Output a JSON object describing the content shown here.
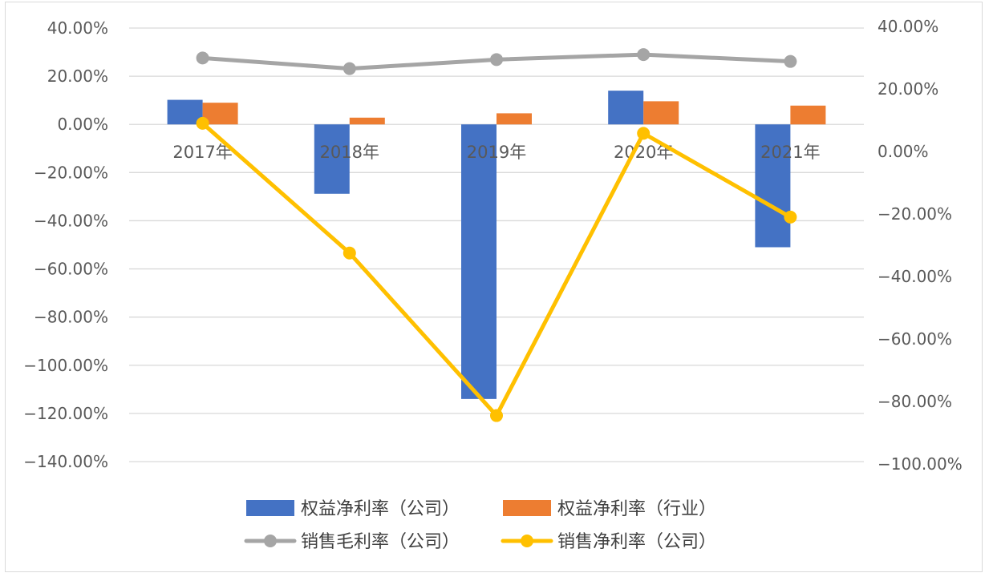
{
  "chart_data": {
    "type": "bar",
    "title": "",
    "categories": [
      "2017年",
      "2018年",
      "2019年",
      "2020年",
      "2021年"
    ],
    "axes": {
      "left": {
        "ylim": [
          -140,
          40
        ],
        "ticks": [
          "40.00%",
          "20.00%",
          "0.00%",
          "−20.00%",
          "−40.00%",
          "−60.00%",
          "−80.00%",
          "−100.00%",
          "−120.00%",
          "−140.00%"
        ],
        "unit": "%"
      },
      "right": {
        "ylim": [
          -100,
          40
        ],
        "ticks": [
          "40.00%",
          "20.00%",
          "0.00%",
          "−20.00%",
          "−40.00%",
          "−60.00%",
          "−80.00%",
          "−100.00%"
        ],
        "unit": "%"
      }
    },
    "grid": true,
    "legend_position": "bottom",
    "series": [
      {
        "name": "权益净利率（公司）",
        "kind": "bar",
        "axis": "left",
        "color": "#4472C4",
        "values": [
          10.2,
          -28.8,
          -114.0,
          14.0,
          -51.0
        ]
      },
      {
        "name": "权益净利率（行业）",
        "kind": "bar",
        "axis": "left",
        "color": "#ED7D31",
        "values": [
          9.0,
          2.8,
          4.6,
          9.6,
          7.8
        ]
      },
      {
        "name": "销售毛利率（公司）",
        "kind": "line",
        "axis": "right",
        "color": "#A5A5A5",
        "values": [
          29.9,
          26.5,
          29.4,
          31.0,
          28.8
        ]
      },
      {
        "name": "销售净利率（公司）",
        "kind": "line",
        "axis": "right",
        "color": "#FFC000",
        "values": [
          9.0,
          -32.5,
          -84.5,
          5.8,
          -21.0
        ]
      }
    ]
  }
}
